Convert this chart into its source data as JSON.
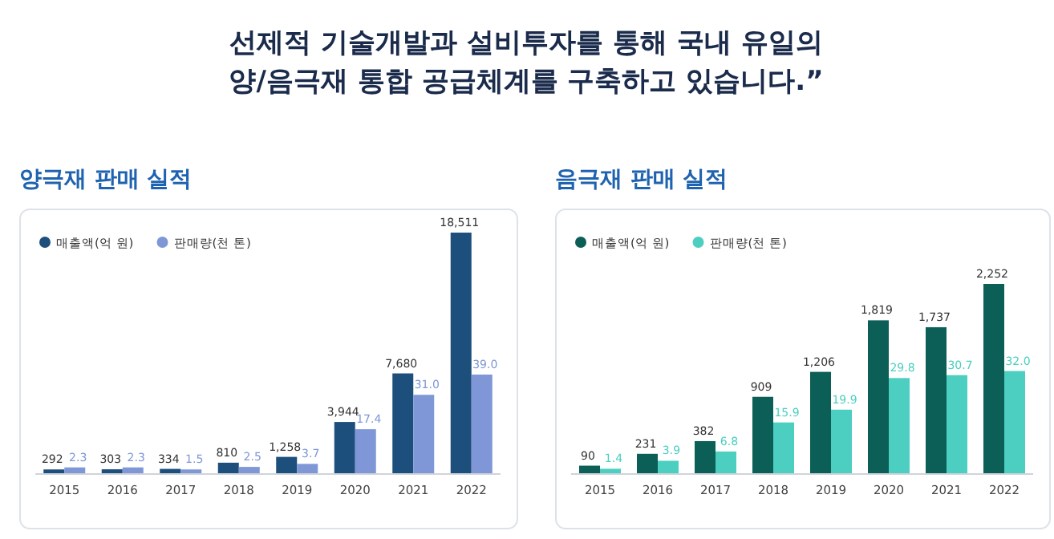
{
  "chart_data": [
    {
      "type": "other",
      "title": "선제적 기술개발과 설비투자를 통해 국내 유일의 양/음극재 통합 공급체계를 구축하고 있습니다.”"
    },
    {
      "type": "bar",
      "title": "양극재 판매 실적",
      "categories": [
        "2015",
        "2016",
        "2017",
        "2018",
        "2019",
        "2020",
        "2021",
        "2022"
      ],
      "legend": "top left",
      "tick_labels": "x",
      "series": [
        {
          "name": "매출액(억 원)",
          "color": "#1d4f7c",
          "values": [
            292,
            303,
            334,
            810,
            1258,
            3944,
            7680,
            18511
          ],
          "value_labels": [
            "292",
            "303",
            "334",
            "810",
            "1,258",
            "3,944",
            "7,680",
            "18,511"
          ]
        },
        {
          "name": "판매량(천 톤)",
          "color": "#7f97d6",
          "axis": "y2",
          "values": [
            2.3,
            2.3,
            1.5,
            2.5,
            3.7,
            17.4,
            31.0,
            39.0
          ],
          "value_labels": [
            "2.3",
            "2.3",
            "1.5",
            "2.5",
            "3.7",
            "17.4",
            "31.0",
            "39.0"
          ]
        }
      ]
    },
    {
      "type": "bar",
      "title": "음극재 판매 실적",
      "categories": [
        "2015",
        "2016",
        "2017",
        "2018",
        "2019",
        "2020",
        "2021",
        "2022"
      ],
      "legend": "top left",
      "tick_labels": "x",
      "series": [
        {
          "name": "매출액(억 원)",
          "color": "#0b5f57",
          "values": [
            90,
            231,
            382,
            909,
            1206,
            1819,
            1737,
            2252
          ],
          "value_labels": [
            "90",
            "231",
            "382",
            "909",
            "1,206",
            "1,819",
            "1,737",
            "2,252"
          ]
        },
        {
          "name": "판매량(천 톤)",
          "color": "#4ccfc0",
          "axis": "y2",
          "values": [
            1.4,
            3.9,
            6.8,
            15.9,
            19.9,
            29.8,
            30.7,
            32.0
          ],
          "value_labels": [
            "1.4",
            "3.9",
            "6.8",
            "15.9",
            "19.9",
            "29.8",
            "30.7",
            "32.0"
          ]
        }
      ]
    }
  ]
}
